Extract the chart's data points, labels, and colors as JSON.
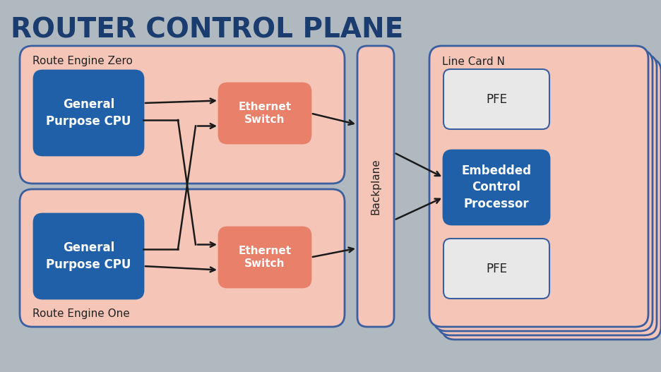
{
  "title": "ROUTER CONTROL PLANE",
  "title_color": "#1a3c6e",
  "bg_color": "#b0b8c0",
  "salmon_bg": "#f5c6b8",
  "salmon_border": "#3a5fa0",
  "blue_box": "#2060a8",
  "salmon_box": "#e8806a",
  "pfe_bg": "#e8e8e8",
  "pfe_border": "#3a5fa0",
  "dark_text": "#222222",
  "route_engine_zero_label": "Route Engine Zero",
  "route_engine_one_label": "Route Engine One",
  "line_card_label": "Line Card N",
  "backplane_label": "Backplane",
  "cpu_label": "General\nPurpose CPU",
  "eth_switch_label": "Ethernet\nSwitch",
  "ecp_label": "Embedded\nControl\nProcessor",
  "pfe_label": "PFE"
}
